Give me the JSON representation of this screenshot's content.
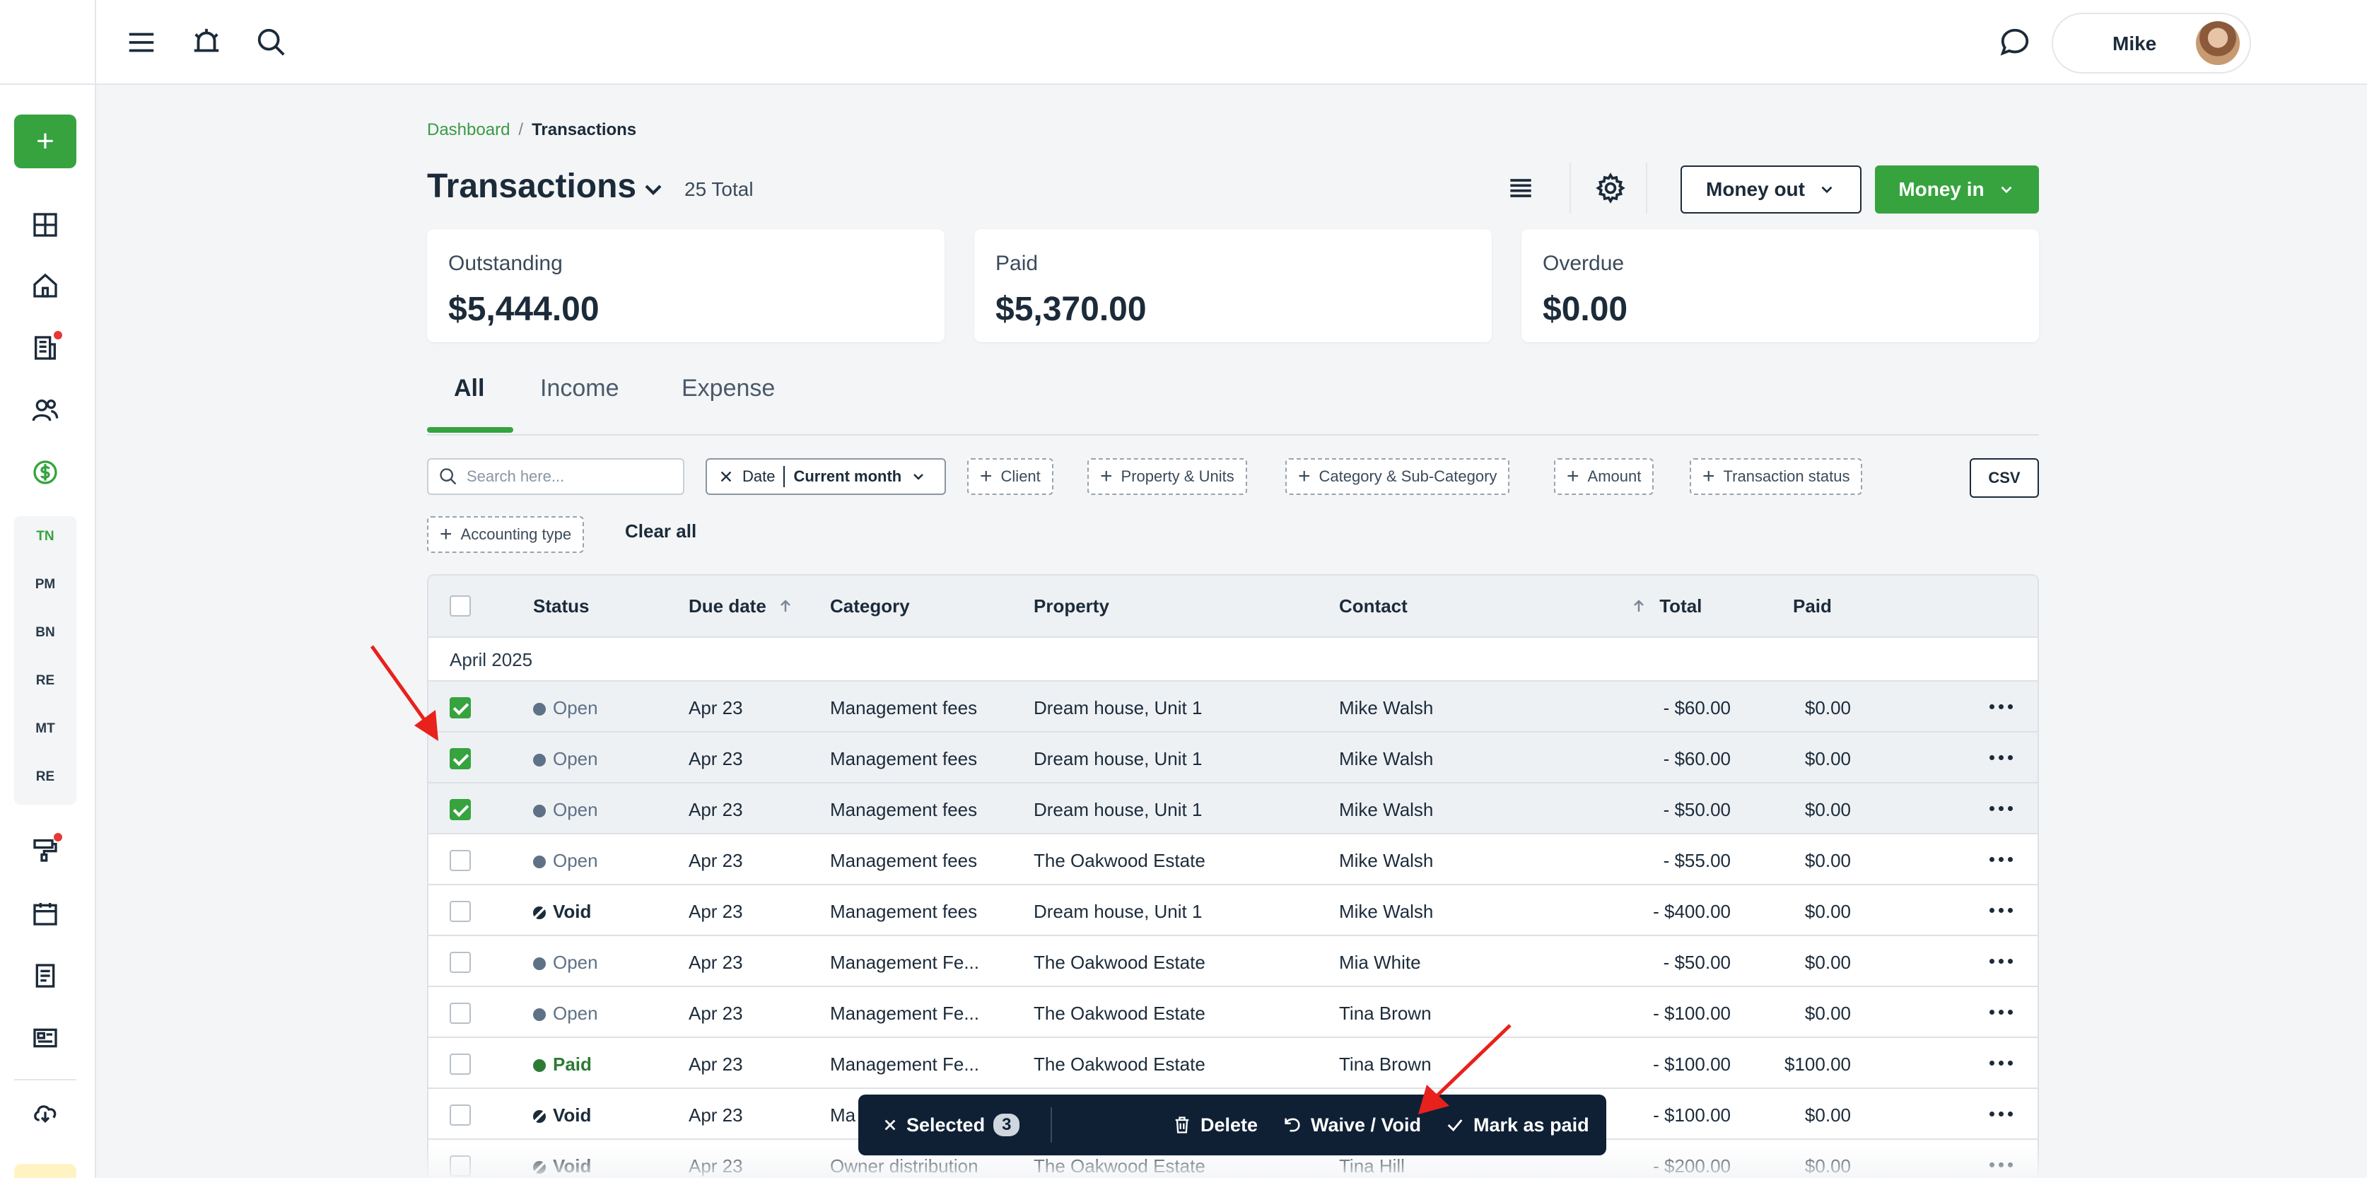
{
  "sidebar": {
    "add_button": "+",
    "icons": [
      "dashboard-icon",
      "home-icon",
      "building-icon",
      "people-icon",
      "money-icon",
      "tools-icon",
      "calendar-icon",
      "document-icon",
      "news-icon",
      "download-icon"
    ],
    "sub_items": [
      "TN",
      "PM",
      "BN",
      "RE",
      "MT",
      "RE"
    ]
  },
  "topbar": {
    "icons": [
      "menu-icon",
      "bell-icon",
      "search-icon",
      "chat-icon",
      "help-icon"
    ],
    "user_name": "Mike"
  },
  "breadcrumb": {
    "link": "Dashboard",
    "separator": "/",
    "current": "Transactions"
  },
  "header": {
    "title": "Transactions",
    "total": "25 Total",
    "money_out": "Money out",
    "money_in": "Money in"
  },
  "summary": [
    {
      "label": "Outstanding",
      "value": "$5,444.00"
    },
    {
      "label": "Paid",
      "value": "$5,370.00"
    },
    {
      "label": "Overdue",
      "value": "$0.00"
    }
  ],
  "tabs": [
    "All",
    "Income",
    "Expense"
  ],
  "filters": {
    "search_placeholder": "Search here...",
    "date_label": "Date",
    "date_value": "Current month",
    "chips": [
      "Client",
      "Property & Units",
      "Category & Sub-Category",
      "Amount",
      "Transaction status",
      "Accounting type"
    ],
    "csv": "CSV",
    "clear_all": "Clear all"
  },
  "table": {
    "columns": [
      "Status",
      "Due date",
      "Category",
      "Property",
      "Contact",
      "Total",
      "Paid"
    ],
    "group": "April 2025",
    "rows": [
      {
        "checked": true,
        "status": "Open",
        "due": "Apr 23",
        "category": "Management fees",
        "property": "Dream house, Unit 1",
        "contact": "Mike Walsh",
        "total": "- $60.00",
        "paid": "$0.00"
      },
      {
        "checked": true,
        "status": "Open",
        "due": "Apr 23",
        "category": "Management fees",
        "property": "Dream house, Unit 1",
        "contact": "Mike Walsh",
        "total": "- $60.00",
        "paid": "$0.00"
      },
      {
        "checked": true,
        "status": "Open",
        "due": "Apr 23",
        "category": "Management fees",
        "property": "Dream house, Unit 1",
        "contact": "Mike Walsh",
        "total": "- $50.00",
        "paid": "$0.00"
      },
      {
        "checked": false,
        "status": "Open",
        "due": "Apr 23",
        "category": "Management fees",
        "property": "The Oakwood Estate",
        "contact": "Mike Walsh",
        "total": "- $55.00",
        "paid": "$0.00"
      },
      {
        "checked": false,
        "status": "Void",
        "due": "Apr 23",
        "category": "Management fees",
        "property": "Dream house, Unit 1",
        "contact": "Mike Walsh",
        "total": "- $400.00",
        "paid": "$0.00"
      },
      {
        "checked": false,
        "status": "Open",
        "due": "Apr 23",
        "category": "Management Fe...",
        "property": "The Oakwood Estate",
        "contact": "Mia White",
        "total": "- $50.00",
        "paid": "$0.00"
      },
      {
        "checked": false,
        "status": "Open",
        "due": "Apr 23",
        "category": "Management Fe...",
        "property": "The Oakwood Estate",
        "contact": "Tina Brown",
        "total": "- $100.00",
        "paid": "$0.00"
      },
      {
        "checked": false,
        "status": "Paid",
        "due": "Apr 23",
        "category": "Management Fe...",
        "property": "The Oakwood Estate",
        "contact": "Tina Brown",
        "total": "- $100.00",
        "paid": "$100.00"
      },
      {
        "checked": false,
        "status": "Void",
        "due": "Apr 23",
        "category": "Ma",
        "property": "",
        "contact": "",
        "total": "- $100.00",
        "paid": "$0.00"
      },
      {
        "checked": false,
        "status": "Void",
        "due": "Apr 23",
        "category": "Owner distribution",
        "property": "The Oakwood Estate",
        "contact": "Tina Hill",
        "total": "- $200.00",
        "paid": "$0.00"
      }
    ]
  },
  "bulk_bar": {
    "selected_label": "Selected",
    "selected_count": "3",
    "delete": "Delete",
    "waive_void": "Waive / Void",
    "mark_paid": "Mark as paid"
  },
  "colors": {
    "accent_green": "#36a33f",
    "dark_navy": "#0f2035",
    "annotation_red": "#e8211c"
  }
}
